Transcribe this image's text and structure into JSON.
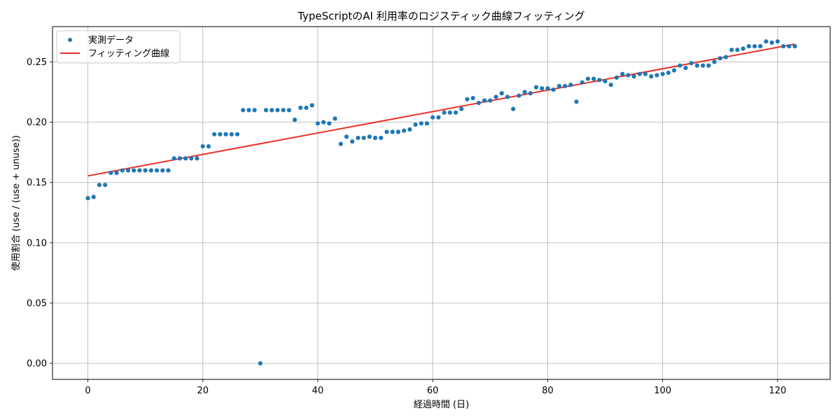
{
  "chart_data": {
    "type": "scatter",
    "title": "TypeScriptのAI 利用率のロジスティック曲線フィッティング",
    "xlabel": "経過時間 (日)",
    "ylabel": "使用割合 (use / (use + unuse))",
    "xlim": [
      -6.15,
      129.15
    ],
    "ylim": [
      -0.0133,
      0.2793
    ],
    "xticks": [
      0,
      20,
      40,
      60,
      80,
      100,
      120
    ],
    "yticks": [
      0.0,
      0.05,
      0.1,
      0.15,
      0.2,
      0.25
    ],
    "xtick_labels": [
      "0",
      "20",
      "40",
      "60",
      "80",
      "100",
      "120"
    ],
    "ytick_labels": [
      "0.00",
      "0.05",
      "0.10",
      "0.15",
      "0.20",
      "0.25"
    ],
    "grid": true,
    "legend_position": "top-left",
    "legend": [
      "実測データ",
      "フィッティング曲線"
    ],
    "series": [
      {
        "name": "実測データ",
        "kind": "scatter",
        "color": "#1f77b4",
        "x": [
          0,
          1,
          2,
          3,
          4,
          5,
          6,
          7,
          8,
          9,
          10,
          11,
          12,
          13,
          14,
          15,
          16,
          17,
          18,
          19,
          20,
          21,
          22,
          23,
          24,
          25,
          26,
          27,
          28,
          29,
          30,
          31,
          32,
          33,
          34,
          35,
          36,
          37,
          38,
          39,
          40,
          41,
          42,
          43,
          44,
          45,
          46,
          47,
          48,
          49,
          50,
          51,
          52,
          53,
          54,
          55,
          56,
          57,
          58,
          59,
          60,
          61,
          62,
          63,
          64,
          65,
          66,
          67,
          68,
          69,
          70,
          71,
          72,
          73,
          74,
          75,
          76,
          77,
          78,
          79,
          80,
          81,
          82,
          83,
          84,
          85,
          86,
          87,
          88,
          89,
          90,
          91,
          92,
          93,
          94,
          95,
          96,
          97,
          98,
          99,
          100,
          101,
          102,
          103,
          104,
          105,
          106,
          107,
          108,
          109,
          110,
          111,
          112,
          113,
          114,
          115,
          116,
          117,
          118,
          119,
          120,
          121,
          122,
          123
        ],
        "y": [
          0.137,
          0.138,
          0.148,
          0.148,
          0.158,
          0.158,
          0.16,
          0.16,
          0.16,
          0.16,
          0.16,
          0.16,
          0.16,
          0.16,
          0.16,
          0.17,
          0.17,
          0.17,
          0.17,
          0.17,
          0.18,
          0.18,
          0.19,
          0.19,
          0.19,
          0.19,
          0.19,
          0.21,
          0.21,
          0.21,
          0.0,
          0.21,
          0.21,
          0.21,
          0.21,
          0.21,
          0.202,
          0.212,
          0.212,
          0.214,
          0.199,
          0.2,
          0.199,
          0.203,
          0.182,
          0.188,
          0.184,
          0.187,
          0.187,
          0.188,
          0.187,
          0.187,
          0.192,
          0.192,
          0.192,
          0.193,
          0.194,
          0.198,
          0.199,
          0.199,
          0.204,
          0.204,
          0.208,
          0.208,
          0.208,
          0.211,
          0.219,
          0.22,
          0.216,
          0.218,
          0.218,
          0.221,
          0.224,
          0.221,
          0.211,
          0.222,
          0.225,
          0.224,
          0.229,
          0.228,
          0.228,
          0.227,
          0.23,
          0.23,
          0.231,
          0.217,
          0.233,
          0.236,
          0.236,
          0.235,
          0.234,
          0.231,
          0.237,
          0.24,
          0.239,
          0.238,
          0.24,
          0.24,
          0.238,
          0.239,
          0.24,
          0.241,
          0.243,
          0.247,
          0.245,
          0.249,
          0.247,
          0.247,
          0.247,
          0.25,
          0.253,
          0.254,
          0.26,
          0.26,
          0.261,
          0.263,
          0.263,
          0.263,
          0.267,
          0.266,
          0.267,
          0.263,
          0.263,
          0.263
        ]
      },
      {
        "name": "フィッティング曲線",
        "kind": "line",
        "color": "#e8312a",
        "x": [
          0,
          123
        ],
        "y": [
          0.1555,
          0.2648
        ]
      }
    ]
  }
}
